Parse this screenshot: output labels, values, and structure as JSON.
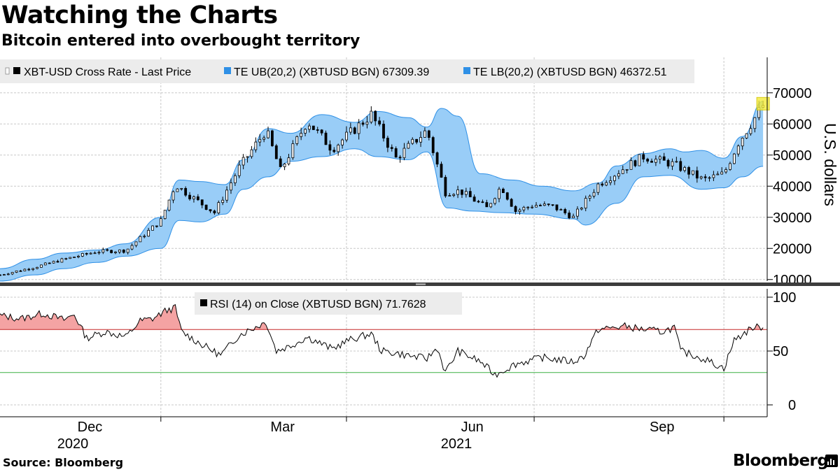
{
  "header": {
    "title": "Watching the Charts",
    "subtitle": "Bitcoin entered into overbought territory"
  },
  "footer": {
    "source": "Source: Bloomberg",
    "brand": "Bloomberg"
  },
  "colors": {
    "band_fill": "#99cdf7",
    "band_stroke": "#2f90e6",
    "candle": "#000000",
    "rsi_line": "#000000",
    "overbought_line": "#c62828",
    "oversold_line": "#3cb043",
    "overbought_fill": "#f4a3a3",
    "highlight": "#f2ea3a",
    "grid": "#c8c8c8",
    "divider": "#3c3c3c"
  },
  "chart_data": [
    {
      "type": "candlestick",
      "panel": "price",
      "legend": [
        {
          "label": "XBT-USD Cross Rate - Last Price",
          "swatch": "#000000"
        },
        {
          "label": "TE UB(20,2) (XBTUSD BGN) 67309.39",
          "swatch": "#2f90e6"
        },
        {
          "label": "TE LB(20,2) (XBTUSD BGN) 46372.51",
          "swatch": "#2f90e6"
        }
      ],
      "ylabel": "U.S. dollars",
      "ylim": [
        3500,
        76000
      ],
      "yticks": [
        10000,
        20000,
        30000,
        40000,
        50000,
        60000,
        70000
      ],
      "grid": true,
      "legend_position": "top-left",
      "price_series": {
        "name": "XBT-USD Cross Rate - Last Price",
        "x": [
          "2020-10-15",
          "2020-11-01",
          "2020-11-15",
          "2020-12-01",
          "2020-12-15",
          "2021-01-01",
          "2021-01-08",
          "2021-01-15",
          "2021-01-27",
          "2021-02-08",
          "2021-02-21",
          "2021-02-28",
          "2021-03-13",
          "2021-03-25",
          "2021-04-13",
          "2021-04-25",
          "2021-05-10",
          "2021-05-19",
          "2021-05-26",
          "2021-06-08",
          "2021-06-15",
          "2021-06-22",
          "2021-07-01",
          "2021-07-10",
          "2021-07-20",
          "2021-08-01",
          "2021-08-14",
          "2021-08-23",
          "2021-09-07",
          "2021-09-21",
          "2021-10-01",
          "2021-10-08",
          "2021-10-15",
          "2021-10-20"
        ],
        "close": [
          11500,
          14000,
          16500,
          19000,
          19300,
          29000,
          40500,
          37000,
          31500,
          46000,
          58000,
          45000,
          61000,
          52000,
          63000,
          49000,
          58000,
          38000,
          38500,
          33000,
          40000,
          32000,
          34000,
          33500,
          30000,
          40500,
          46000,
          49500,
          47000,
          42000,
          44000,
          54000,
          61000,
          66000
        ]
      },
      "upper_band": {
        "name": "TE UB(20,2) (XBTUSD BGN)",
        "last": 67309.39,
        "x": [
          "2020-10-15",
          "2020-11-01",
          "2020-11-15",
          "2020-12-01",
          "2020-12-15",
          "2021-01-01",
          "2021-01-10",
          "2021-01-20",
          "2021-02-01",
          "2021-02-10",
          "2021-02-22",
          "2021-03-05",
          "2021-03-20",
          "2021-04-05",
          "2021-04-16",
          "2021-05-01",
          "2021-05-10",
          "2021-05-17",
          "2021-05-25",
          "2021-06-05",
          "2021-06-20",
          "2021-07-05",
          "2021-07-20",
          "2021-08-01",
          "2021-08-10",
          "2021-08-23",
          "2021-09-05",
          "2021-09-12",
          "2021-09-20",
          "2021-10-01",
          "2021-10-10",
          "2021-10-20"
        ],
        "values": [
          13500,
          16500,
          18500,
          19500,
          21500,
          30000,
          42000,
          41500,
          40500,
          48500,
          58500,
          57000,
          63000,
          60500,
          64000,
          62000,
          59000,
          65000,
          62500,
          44000,
          42000,
          40000,
          38500,
          41000,
          46500,
          50500,
          52000,
          51000,
          51500,
          49000,
          56000,
          67309.39
        ]
      },
      "lower_band": {
        "name": "TE LB(20,2) (XBTUSD BGN)",
        "last": 46372.51,
        "x": [
          "2020-10-15",
          "2020-11-01",
          "2020-11-15",
          "2020-12-01",
          "2020-12-15",
          "2021-01-01",
          "2021-01-10",
          "2021-01-20",
          "2021-02-01",
          "2021-02-10",
          "2021-02-22",
          "2021-03-05",
          "2021-03-20",
          "2021-04-05",
          "2021-04-16",
          "2021-05-01",
          "2021-05-10",
          "2021-05-20",
          "2021-06-01",
          "2021-06-15",
          "2021-07-01",
          "2021-07-20",
          "2021-07-26",
          "2021-08-10",
          "2021-08-23",
          "2021-09-05",
          "2021-09-20",
          "2021-10-01",
          "2021-10-10",
          "2021-10-20"
        ],
        "values": [
          9500,
          11500,
          13500,
          15500,
          17500,
          20000,
          29000,
          28500,
          31000,
          39000,
          43000,
          48000,
          49500,
          52000,
          49500,
          48500,
          51000,
          33000,
          32000,
          31500,
          31000,
          29500,
          27500,
          34500,
          43000,
          43500,
          39000,
          39500,
          43000,
          46372.51
        ]
      },
      "annotation": {
        "type": "highlight-box",
        "x": "2021-10-20",
        "y": 66500
      }
    },
    {
      "type": "line",
      "panel": "indicator",
      "legend": [
        {
          "label": "RSI (14)  on Close (XBTUSD BGN) 71.7628",
          "swatch": "#000000"
        }
      ],
      "series": [
        {
          "name": "RSI (14)  on Close (XBTUSD BGN)",
          "last": 71.7628,
          "x": [
            "2020-10-15",
            "2020-10-25",
            "2020-11-05",
            "2020-11-15",
            "2020-11-20",
            "2020-11-26",
            "2020-12-05",
            "2020-12-15",
            "2020-12-22",
            "2020-12-28",
            "2021-01-04",
            "2021-01-08",
            "2021-01-11",
            "2021-01-20",
            "2021-01-30",
            "2021-02-08",
            "2021-02-21",
            "2021-02-26",
            "2021-03-05",
            "2021-03-13",
            "2021-03-25",
            "2021-04-02",
            "2021-04-13",
            "2021-04-18",
            "2021-04-25",
            "2021-05-03",
            "2021-05-10",
            "2021-05-15",
            "2021-05-19",
            "2021-05-25",
            "2021-06-05",
            "2021-06-12",
            "2021-06-22",
            "2021-07-05",
            "2021-07-20",
            "2021-07-25",
            "2021-08-01",
            "2021-08-14",
            "2021-08-23",
            "2021-09-01",
            "2021-09-07",
            "2021-09-10",
            "2021-09-21",
            "2021-10-01",
            "2021-10-06",
            "2021-10-15",
            "2021-10-20"
          ],
          "values": [
            83,
            80,
            85,
            79,
            84,
            62,
            68,
            63,
            78,
            80,
            88,
            90,
            68,
            57,
            46,
            65,
            77,
            50,
            55,
            63,
            52,
            60,
            66,
            50,
            48,
            45,
            43,
            53,
            30,
            50,
            40,
            28,
            38,
            44,
            40,
            45,
            70,
            73,
            70,
            68,
            72,
            50,
            43,
            34,
            60,
            72,
            71.7628
          ]
        }
      ],
      "ylim": [
        0,
        100
      ],
      "yticks": [
        0,
        50,
        100
      ],
      "reference_lines": [
        {
          "level": 70,
          "color": "#c62828"
        },
        {
          "level": 30,
          "color": "#3cb043"
        }
      ]
    }
  ],
  "x_axis": {
    "months": [
      {
        "label": "Dec",
        "date": "2020-12-01"
      },
      {
        "label": "Mar",
        "date": "2021-03-01"
      },
      {
        "label": "Jun",
        "date": "2021-06-01"
      },
      {
        "label": "Sep",
        "date": "2021-09-01"
      }
    ],
    "years": [
      {
        "label": "2020",
        "date": "2020-11-15"
      },
      {
        "label": "2021",
        "date": "2021-05-15"
      }
    ],
    "boundaries": [
      "2021-01-01",
      "2021-04-01",
      "2021-07-01",
      "2021-10-01"
    ]
  }
}
